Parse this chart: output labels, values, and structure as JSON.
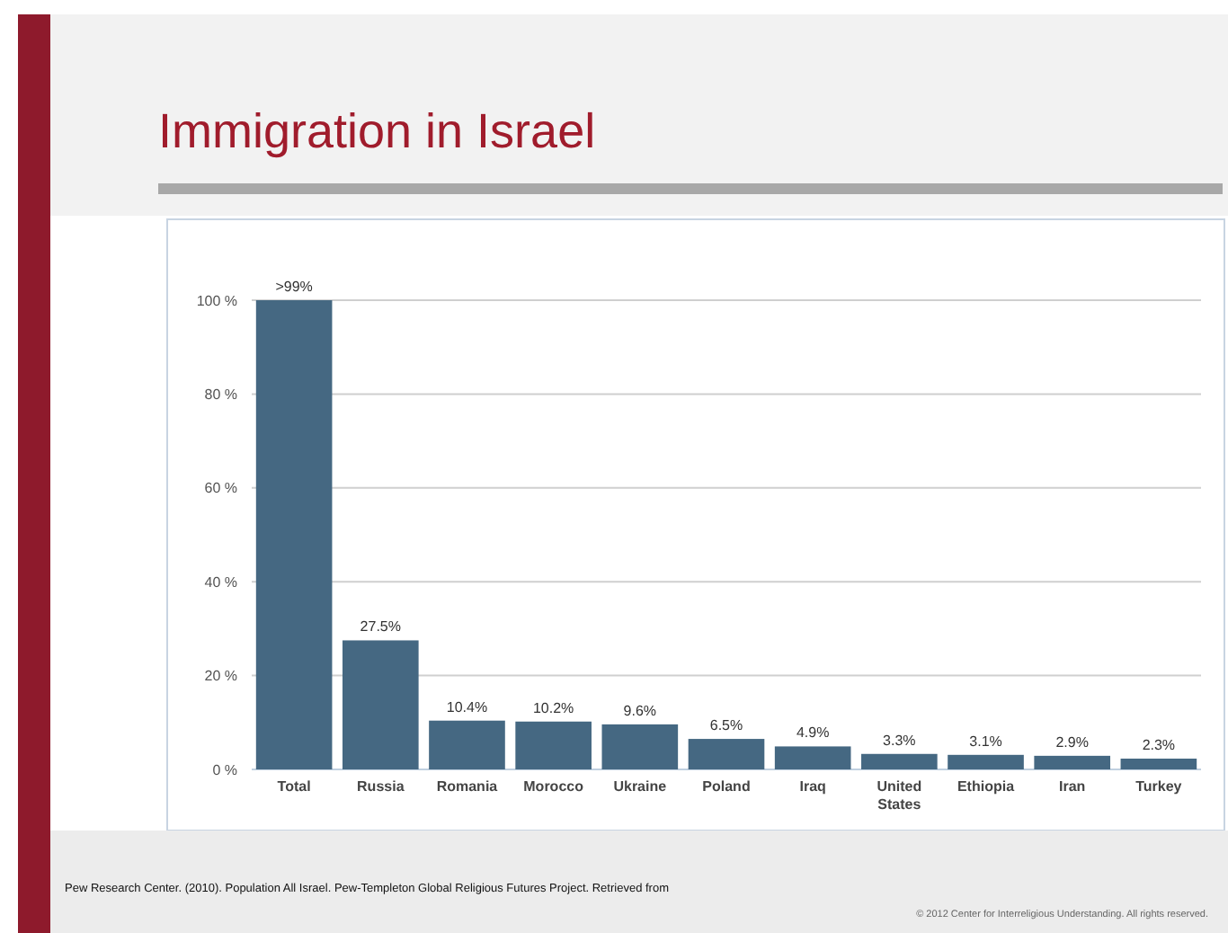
{
  "chart_data": {
    "type": "bar",
    "title": "Immigration in Israel",
    "categories": [
      "Total",
      "Russia",
      "Romania",
      "Morocco",
      "Ukraine",
      "Poland",
      "Iraq",
      "United States",
      "Ethiopia",
      "Iran",
      "Turkey"
    ],
    "values": [
      100,
      27.5,
      10.4,
      10.2,
      9.6,
      6.5,
      4.9,
      3.3,
      3.1,
      2.9,
      2.3
    ],
    "value_labels": [
      ">99%",
      "27.5%",
      "10.4%",
      "10.2%",
      "9.6%",
      "6.5%",
      "4.9%",
      "3.3%",
      "3.1%",
      "2.9%",
      "2.3%"
    ],
    "color": "#456882",
    "ylim": [
      0,
      100
    ],
    "yticks": [
      {
        "value": 0,
        "label": "0 %"
      },
      {
        "value": 20,
        "label": "20 %"
      },
      {
        "value": 40,
        "label": "40 %"
      },
      {
        "value": 60,
        "label": "60 %"
      },
      {
        "value": 80,
        "label": "80 %"
      },
      {
        "value": 100,
        "label": "100 %"
      }
    ],
    "grid": "y",
    "annotations": [
      "Pew Research Center. (2010). Population All Israel. Pew-Templeton Global Religious Futures Project. Retrieved from",
      "© 2012 Center for Interreligious Understanding. All rights reserved."
    ]
  }
}
